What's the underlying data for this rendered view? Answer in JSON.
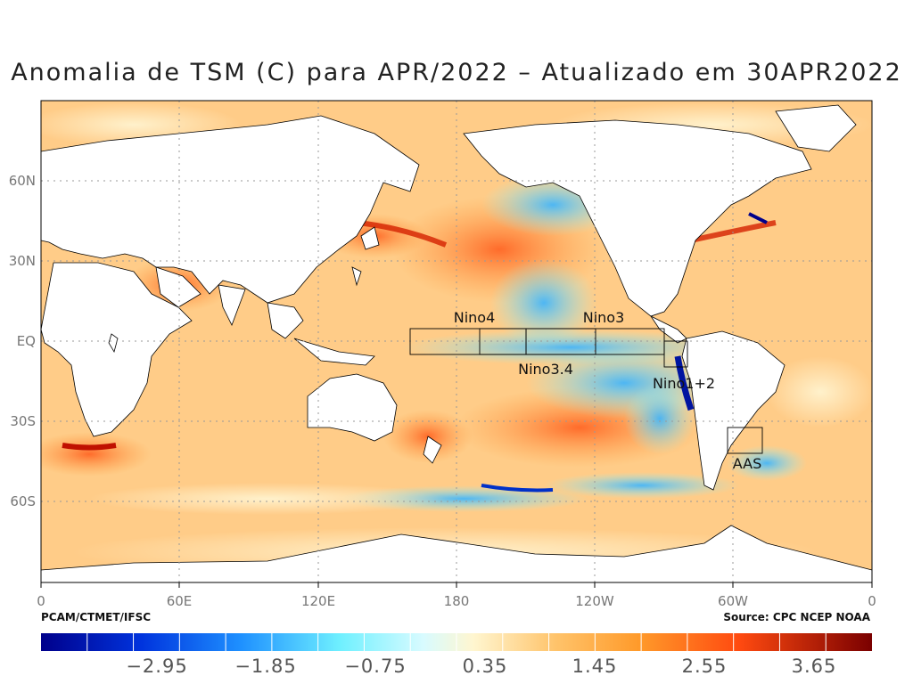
{
  "title": "Anomalia de TSM (C) para APR/2022 – Atualizado em 30APR2022",
  "credit_left": "PCAM/CTMET/IFSC",
  "credit_right": "Source: CPC NCEP NOAA",
  "x_ticks": [
    "0",
    "60E",
    "120E",
    "180",
    "120W",
    "60W",
    "0"
  ],
  "y_ticks": [
    "60N",
    "30N",
    "EQ",
    "30S",
    "60S"
  ],
  "regions": [
    "Nino4",
    "Nino3",
    "Nino3.4",
    "Nino1+2",
    "AAS"
  ],
  "colorbar_labels": [
    "−2.95",
    "−1.85",
    "−0.75",
    "0.35",
    "1.45",
    "2.55",
    "3.65"
  ],
  "colors": {
    "cold_extreme": "#00008b",
    "cold": "#1e90ff",
    "cool": "#7fffff",
    "neutral": "#fff4d0",
    "warm": "#ffb347",
    "hot": "#ff4500",
    "hot_extreme": "#800000",
    "land": "#ffffff"
  }
}
